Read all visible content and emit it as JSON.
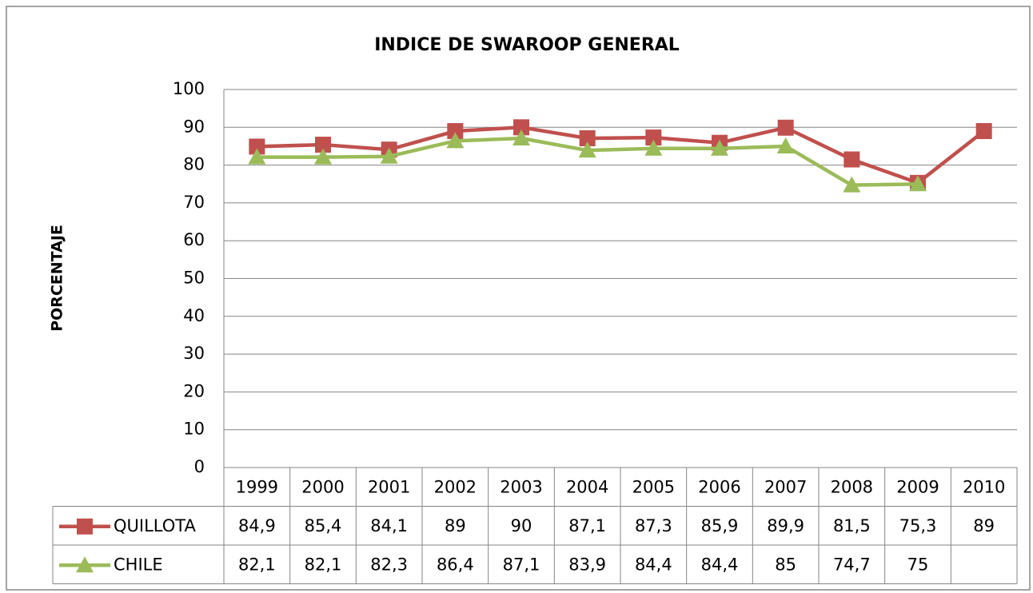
{
  "chart_data": {
    "type": "line",
    "title": "INDICE DE SWAROOP GENERAL",
    "y_label": "PORCENTAJE",
    "categories": [
      "1999",
      "2000",
      "2001",
      "2002",
      "2003",
      "2004",
      "2005",
      "2006",
      "2007",
      "2008",
      "2009",
      "2010"
    ],
    "series": [
      {
        "name": "QUILLOTA",
        "color": "#c0504d",
        "marker": "square",
        "values": [
          84.9,
          85.4,
          84.1,
          89,
          90,
          87.1,
          87.3,
          85.9,
          89.9,
          81.5,
          75.3,
          89
        ],
        "value_labels": [
          "84,9",
          "85,4",
          "84,1",
          "89",
          "90",
          "87,1",
          "87,3",
          "85,9",
          "89,9",
          "81,5",
          "75,3",
          "89"
        ]
      },
      {
        "name": "CHILE",
        "color": "#9bbb59",
        "marker": "triangle",
        "values": [
          82.1,
          82.1,
          82.3,
          86.4,
          87.1,
          83.9,
          84.4,
          84.4,
          85,
          74.7,
          75,
          null
        ],
        "value_labels": [
          "82,1",
          "82,1",
          "82,3",
          "86,4",
          "87,1",
          "83,9",
          "84,4",
          "84,4",
          "85",
          "74,7",
          "75",
          null
        ]
      }
    ],
    "ylim": [
      0,
      100
    ],
    "yticks": [
      0,
      10,
      20,
      30,
      40,
      50,
      60,
      70,
      80,
      90,
      100
    ],
    "grid": true
  }
}
